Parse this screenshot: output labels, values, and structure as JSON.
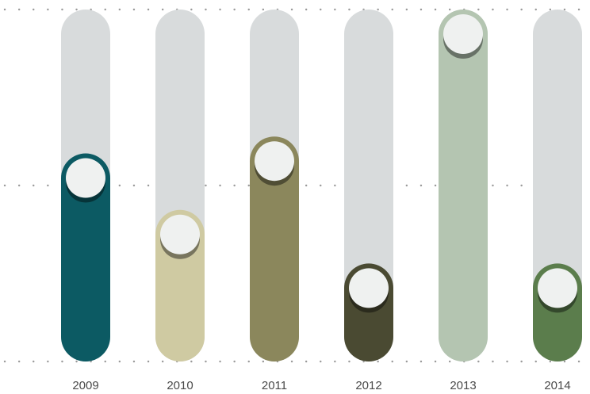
{
  "chart_data": {
    "type": "bar",
    "categories": [
      "2009",
      "2010",
      "2011",
      "2012",
      "2013",
      "2014"
    ],
    "values": [
      0.49,
      0.29,
      0.55,
      0.1,
      1.0,
      0.1
    ],
    "ylim": [
      0,
      1
    ],
    "grid": true,
    "colors": {
      "track": "#d8dbdc",
      "knob": "#eff1f0",
      "grid": "#9a9a9a",
      "bars": [
        "#0c5a63",
        "#cfcaa2",
        "#8b875c",
        "#4a4a32",
        "#b4c5b1",
        "#5b7d4c"
      ]
    }
  }
}
